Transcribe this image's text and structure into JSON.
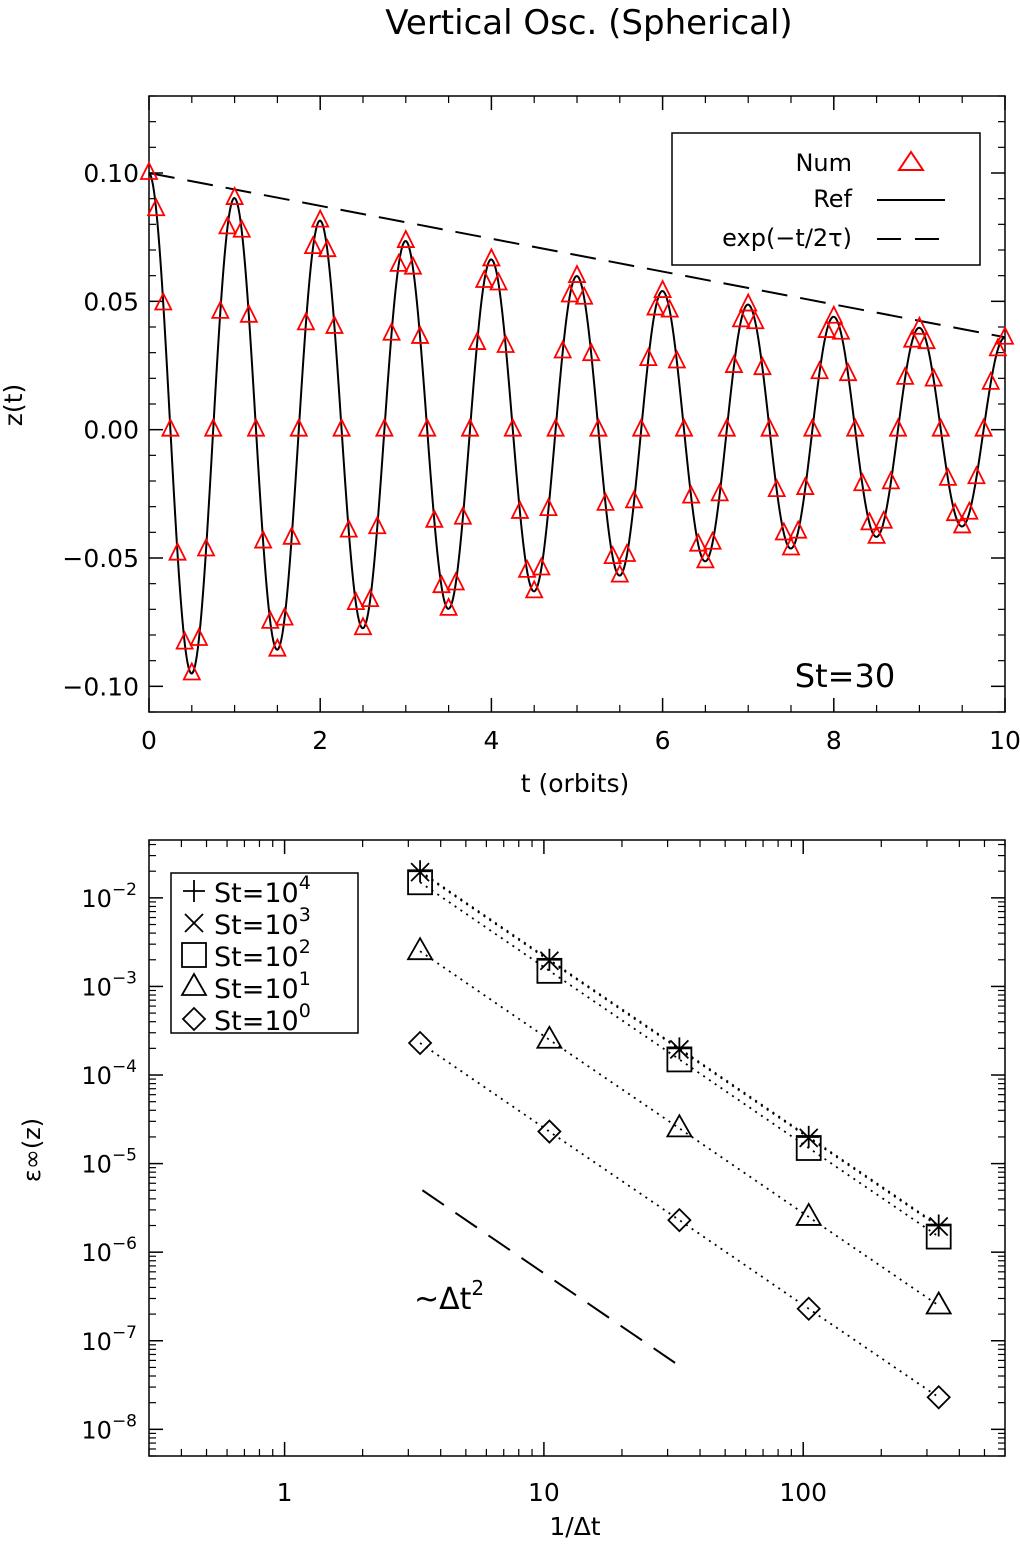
{
  "chart_data": [
    {
      "type": "line",
      "title": "Vertical Osc. (Spherical)",
      "xlabel": "t (orbits)",
      "ylabel": "z(t)",
      "xlim": [
        0,
        10
      ],
      "ylim": [
        -0.11,
        0.13
      ],
      "xticks": [
        "0",
        "2",
        "4",
        "6",
        "8",
        "10"
      ],
      "yticks": [
        "0.10",
        "0.05",
        "0.00",
        "−0.05",
        "−0.10"
      ],
      "annotation": "St=30",
      "legend_position": "top-right",
      "legend": {
        "num": "Num",
        "ref": "Ref",
        "env": "exp(−t/2τ)"
      },
      "series": [
        {
          "name": "Num",
          "style": "red-triangle-markers",
          "x_range": [
            0,
            10
          ],
          "n_points": 121,
          "color": "#ff0000"
        },
        {
          "name": "Ref",
          "style": "solid-line",
          "formula_values": {
            "z0": 0.1,
            "period": 1.0,
            "tau": 4.87
          },
          "color": "#000000"
        },
        {
          "name": "exp(−t/2τ)",
          "style": "dashed-line",
          "x": [
            0,
            10
          ],
          "y": [
            0.1,
            0.036
          ],
          "color": "#000000"
        }
      ],
      "colors": {
        "num": "#ff0000",
        "line": "#000000"
      }
    },
    {
      "type": "scatter",
      "xlabel": "1/Δt",
      "ylabel": "ε∞(z)",
      "xscale": "log",
      "yscale": "log",
      "xlim": [
        0.3,
        600
      ],
      "ylim": [
        5e-09,
        0.045
      ],
      "xticks": [
        "1",
        "10",
        "100"
      ],
      "yticks": [
        {
          "base": "10",
          "exp": "−2"
        },
        {
          "base": "10",
          "exp": "−3"
        },
        {
          "base": "10",
          "exp": "−4"
        },
        {
          "base": "10",
          "exp": "−5"
        },
        {
          "base": "10",
          "exp": "−6"
        },
        {
          "base": "10",
          "exp": "−7"
        },
        {
          "base": "10",
          "exp": "−8"
        }
      ],
      "legend_position": "top-left",
      "x": [
        3.33,
        10.5,
        33.3,
        105,
        333
      ],
      "series": [
        {
          "name": "St=10^4",
          "label_base": "St=10",
          "label_exp": "4",
          "marker": "plus",
          "values": [
            0.02,
            0.002,
            0.0002,
            2e-05,
            2e-06
          ]
        },
        {
          "name": "St=10^3",
          "label_base": "St=10",
          "label_exp": "3",
          "marker": "cross",
          "values": [
            0.0195,
            0.00195,
            0.000195,
            1.95e-05,
            1.95e-06
          ]
        },
        {
          "name": "St=10^2",
          "label_base": "St=10",
          "label_exp": "2",
          "marker": "square",
          "values": [
            0.015,
            0.0015,
            0.00015,
            1.5e-05,
            1.5e-06
          ]
        },
        {
          "name": "St=10^1",
          "label_base": "St=10",
          "label_exp": "1",
          "marker": "triangle",
          "values": [
            0.0025,
            0.00025,
            2.5e-05,
            2.5e-06,
            2.5e-07
          ]
        },
        {
          "name": "St=10^0",
          "label_base": "St=10",
          "label_exp": "0",
          "marker": "diamond",
          "values": [
            0.00023,
            2.3e-05,
            2.3e-06,
            2.3e-07,
            2.3e-08
          ]
        }
      ],
      "reference_line": {
        "x": [
          3.4,
          34
        ],
        "y": [
          5e-06,
          5e-08
        ],
        "style": "dashed"
      },
      "reference_label": {
        "prefix": "~Δt",
        "exp": "2"
      }
    }
  ]
}
